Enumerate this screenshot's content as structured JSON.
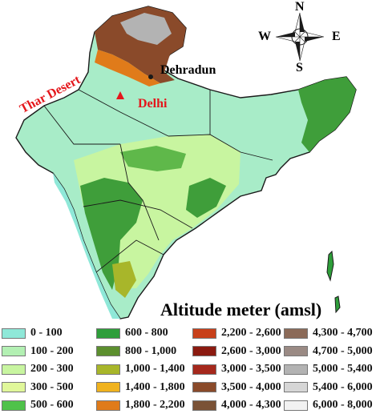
{
  "labels": {
    "dehradun": "Dehradun",
    "delhi": "Delhi",
    "thar": "Thar Desert"
  },
  "compass": {
    "n": "N",
    "s": "S",
    "e": "E",
    "w": "W"
  },
  "legend": {
    "title": "Altitude meter (amsl)",
    "columns": [
      [
        {
          "label": "0 - 100",
          "color": "#8fe8d8"
        },
        {
          "label": "100 - 200",
          "color": "#b3f0b3"
        },
        {
          "label": "200 - 300",
          "color": "#c8f5a0"
        },
        {
          "label": "300 - 500",
          "color": "#e0f79a"
        },
        {
          "label": "500 - 600",
          "color": "#4fc24a"
        }
      ],
      [
        {
          "label": "600 - 800",
          "color": "#2e9e3a"
        },
        {
          "label": "800 - 1,000",
          "color": "#5c8f2e"
        },
        {
          "label": "1,000 - 1,400",
          "color": "#a8b62a"
        },
        {
          "label": "1,400 - 1,800",
          "color": "#f0b21e"
        },
        {
          "label": "1,800 - 2,200",
          "color": "#e07b1a"
        }
      ],
      [
        {
          "label": "2,200 - 2,600",
          "color": "#c8401a"
        },
        {
          "label": "2,600 - 3,000",
          "color": "#8b1a10"
        },
        {
          "label": "3,000 - 3,500",
          "color": "#a5281c"
        },
        {
          "label": "3,500 - 4,000",
          "color": "#8a4a2a"
        },
        {
          "label": "4,000 - 4,300",
          "color": "#7a5236"
        }
      ],
      [
        {
          "label": "4,300 - 4,700",
          "color": "#8b6a58"
        },
        {
          "label": "4,700 - 5,000",
          "color": "#9a8a84"
        },
        {
          "label": "5,000 - 5,400",
          "color": "#b3b3b3"
        },
        {
          "label": "5,400 - 6,000",
          "color": "#d6d6d6"
        },
        {
          "label": "6,000 - 8,000",
          "color": "#f2f2f2"
        }
      ]
    ]
  },
  "map_colors": {
    "lowland": "#a8ecc8",
    "coastal": "#8fe8d8",
    "plateau": "#c8f5a0",
    "hills": "#3f9e3a",
    "highland": "#a8b62a",
    "himalaya_brown": "#8a4a2a",
    "himalaya_grey": "#b3b3b3",
    "boundary": "#1a1a1a",
    "marker": "#e4161b"
  }
}
